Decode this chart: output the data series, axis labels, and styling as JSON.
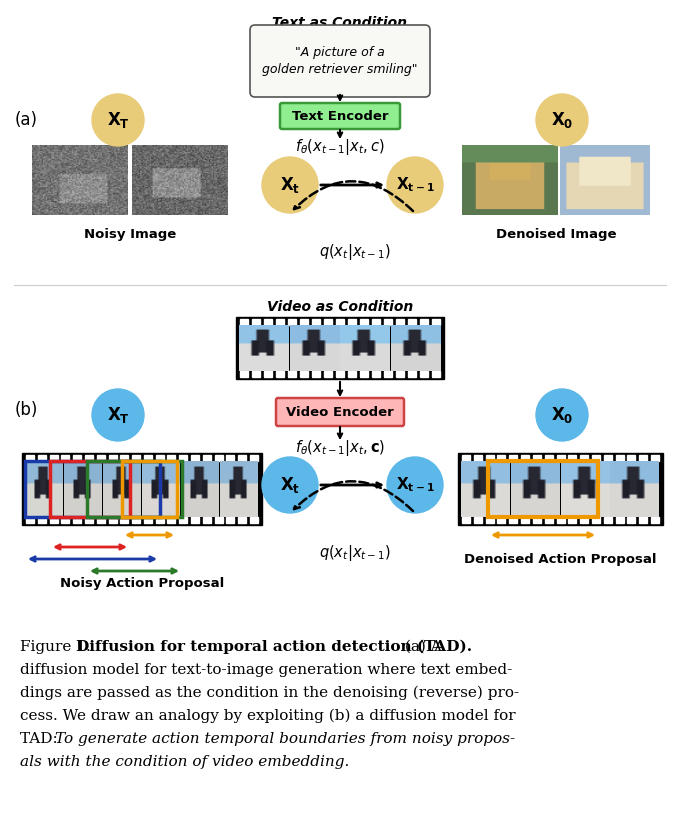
{
  "bg_color": "#ffffff",
  "panel_a_label": "(a)",
  "panel_b_label": "(b)",
  "text_condition_label": "Text as Condition",
  "video_condition_label": "Video as Condition",
  "quote_text": "\"A picture of a\ngolden retriever smiling\"",
  "text_encoder_label": "Text Encoder",
  "video_encoder_label": "Video Encoder",
  "circle_color_a": "#e8cc7a",
  "circle_color_b": "#5bb8e8",
  "text_encoder_bg": "#90ee90",
  "text_encoder_border": "#3a9a3a",
  "video_encoder_bg": "#ffb6b6",
  "video_encoder_border": "#cc4444",
  "noisy_image_label": "Noisy Image",
  "denoised_image_label": "Denoised Image",
  "noisy_action_label": "Noisy Action Proposal",
  "denoised_action_label": "Denoised Action Proposal",
  "caption_fig": "Figure 1. ",
  "caption_bold": "Diffusion for temporal action detection (TAD).",
  "caption_normal": " (a) A diffusion model for text-to-image generation where text embeddings are passed as the condition in the denoising (reverse) process. We draw an analogy by exploiting (b) a diffusion model for TAD: ",
  "caption_italic": "To generate action temporal boundaries from noisy proposals with the condition of video embedding.",
  "proposal_arrow_colors": [
    "#ffa500",
    "#ff0000",
    "#00008b",
    "#3a7a3a"
  ],
  "denoised_proposal_arrow_color": "#ffa500"
}
